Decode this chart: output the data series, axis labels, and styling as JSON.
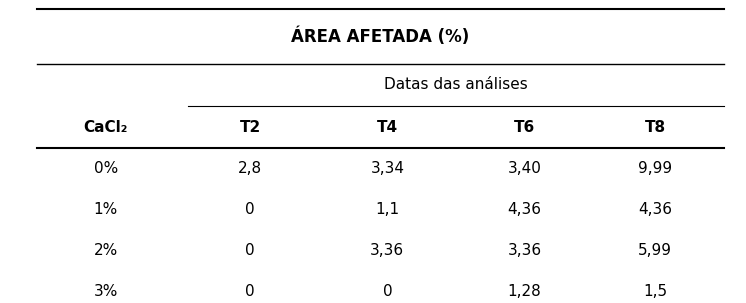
{
  "title": "ÁREA AFETADA (%)",
  "subheader": "Datas das análises",
  "col_header_left": "CaCl₂",
  "col_headers": [
    "T2",
    "T4",
    "T6",
    "T8"
  ],
  "rows": [
    [
      "0%",
      "2,8",
      "3,34",
      "3,40",
      "9,99"
    ],
    [
      "1%",
      "0",
      "1,1",
      "4,36",
      "4,36"
    ],
    [
      "2%",
      "0",
      "3,36",
      "3,36",
      "5,99"
    ],
    [
      "3%",
      "0",
      "0",
      "1,28",
      "1,5"
    ]
  ],
  "background_color": "#ffffff",
  "text_color": "#000000",
  "line_color": "#000000",
  "title_fontsize": 12,
  "header_fontsize": 11,
  "cell_fontsize": 11,
  "figsize": [
    7.46,
    3.03
  ],
  "dpi": 100
}
